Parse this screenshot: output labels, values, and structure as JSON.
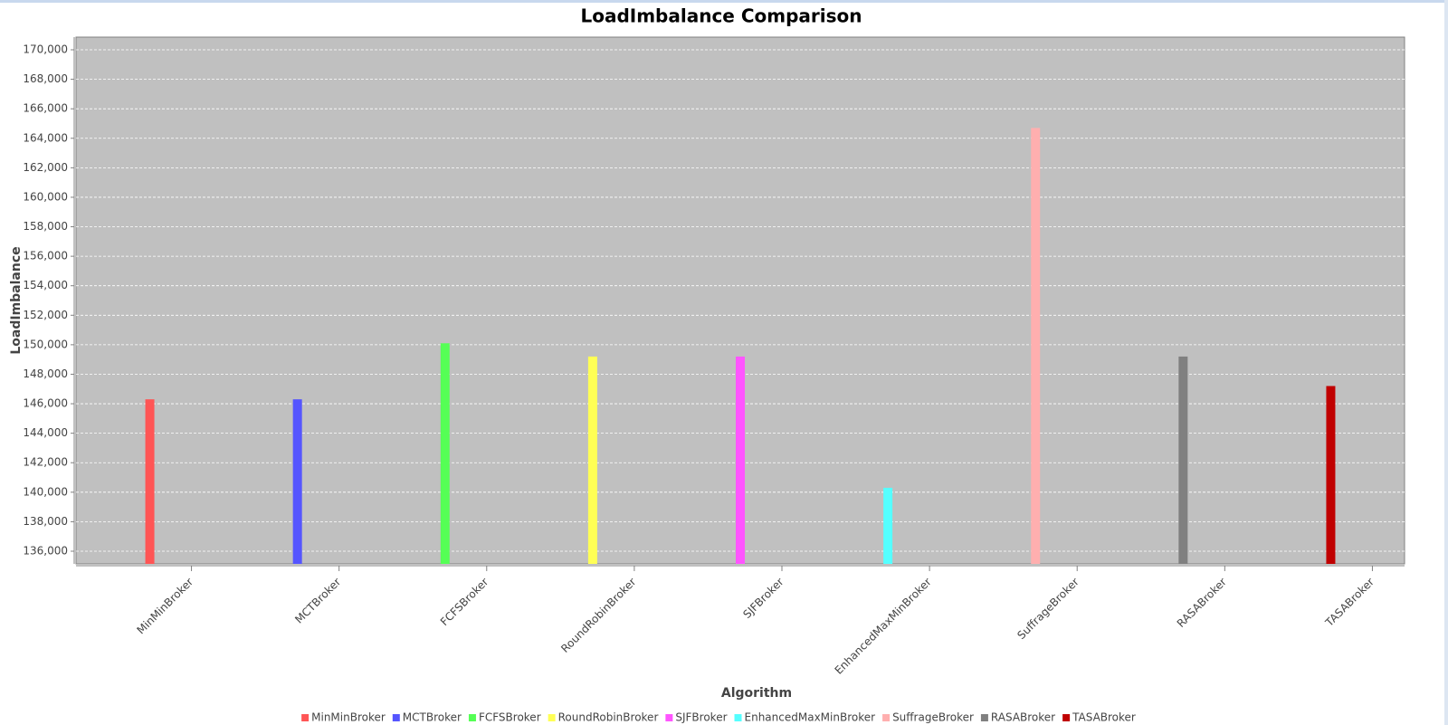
{
  "chart_data": {
    "type": "bar",
    "title": "LoadImbalance Comparison",
    "x_label": "Algorithm",
    "y_label": "LoadImbalance",
    "categories": [
      "MinMinBroker",
      "MCTBroker",
      "FCFSBroker",
      "RoundRobinBroker",
      "SJFBroker",
      "EnhancedMaxMinBroker",
      "SuffrageBroker",
      "RASABroker",
      "TASABroker"
    ],
    "values": [
      146300,
      146300,
      150100,
      149200,
      149200,
      140300,
      164700,
      149200,
      147200
    ],
    "colors": [
      "#ff5555",
      "#5555ff",
      "#55ff55",
      "#ffff55",
      "#ff55ff",
      "#55ffff",
      "#ffafaf",
      "#808080",
      "#c00000"
    ],
    "ylim": [
      135140,
      170860
    ],
    "yticks": [
      {
        "value": 136000,
        "label": "136,000"
      },
      {
        "value": 138000,
        "label": "138,000"
      },
      {
        "value": 140000,
        "label": "140,000"
      },
      {
        "value": 142000,
        "label": "142,000"
      },
      {
        "value": 144000,
        "label": "144,000"
      },
      {
        "value": 146000,
        "label": "146,000"
      },
      {
        "value": 148000,
        "label": "148,000"
      },
      {
        "value": 150000,
        "label": "150,000"
      },
      {
        "value": 152000,
        "label": "152,000"
      },
      {
        "value": 154000,
        "label": "154,000"
      },
      {
        "value": 156000,
        "label": "156,000"
      },
      {
        "value": 158000,
        "label": "158,000"
      },
      {
        "value": 160000,
        "label": "160,000"
      },
      {
        "value": 162000,
        "label": "162,000"
      },
      {
        "value": 164000,
        "label": "164,000"
      },
      {
        "value": 166000,
        "label": "166,000"
      },
      {
        "value": 168000,
        "label": "168,000"
      },
      {
        "value": 170000,
        "label": "170,000"
      }
    ],
    "grid": true,
    "legend": "bottom"
  }
}
